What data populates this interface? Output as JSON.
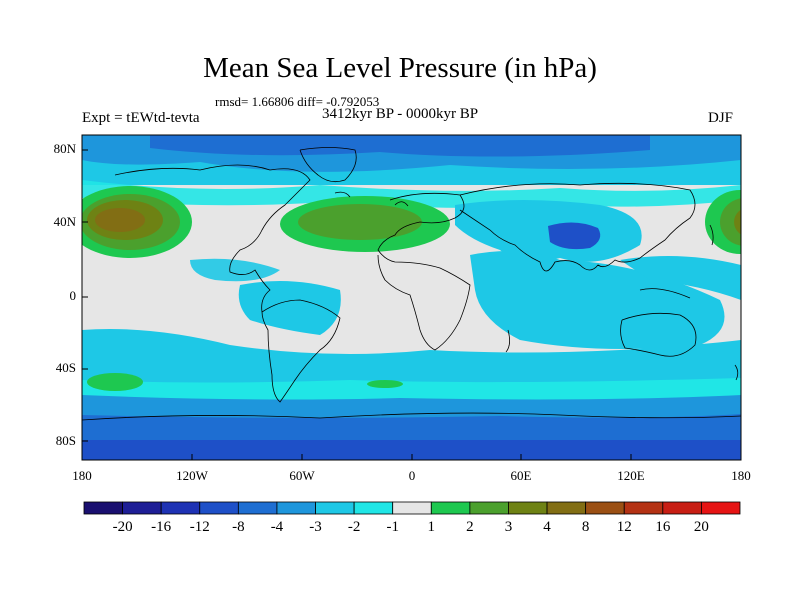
{
  "title": "Mean Sea Level Pressure (in hPa)",
  "stats": "rmsd= 1.66806 diff= -0.792053",
  "experiment": "Expt = tEWtd-tevta",
  "period": "3412kyr BP - 0000kyr BP",
  "season": "DJF",
  "lat_labels": [
    "80N",
    "40N",
    "0",
    "40S",
    "80S"
  ],
  "lon_labels": [
    "180",
    "120W",
    "60W",
    "0",
    "60E",
    "120E",
    "180"
  ],
  "colorbar": {
    "labels": [
      "-20",
      "-16",
      "-12",
      "-8",
      "-4",
      "-3",
      "-2",
      "-1",
      "1",
      "2",
      "3",
      "4",
      "8",
      "12",
      "16",
      "20"
    ],
    "colors": [
      "#1a1070",
      "#1e1e96",
      "#1e32b4",
      "#1e50c8",
      "#1e6ed2",
      "#1e96dc",
      "#1ec8e6",
      "#20e6e6",
      "#e6e6e6",
      "#1ec850",
      "#4ba02d",
      "#6e8214",
      "#826e14",
      "#9b5014",
      "#b43214",
      "#c81e14",
      "#e61414"
    ]
  },
  "palette": {
    "land_ocean_neutral": "#e6e6e6",
    "coast": "#000000"
  }
}
